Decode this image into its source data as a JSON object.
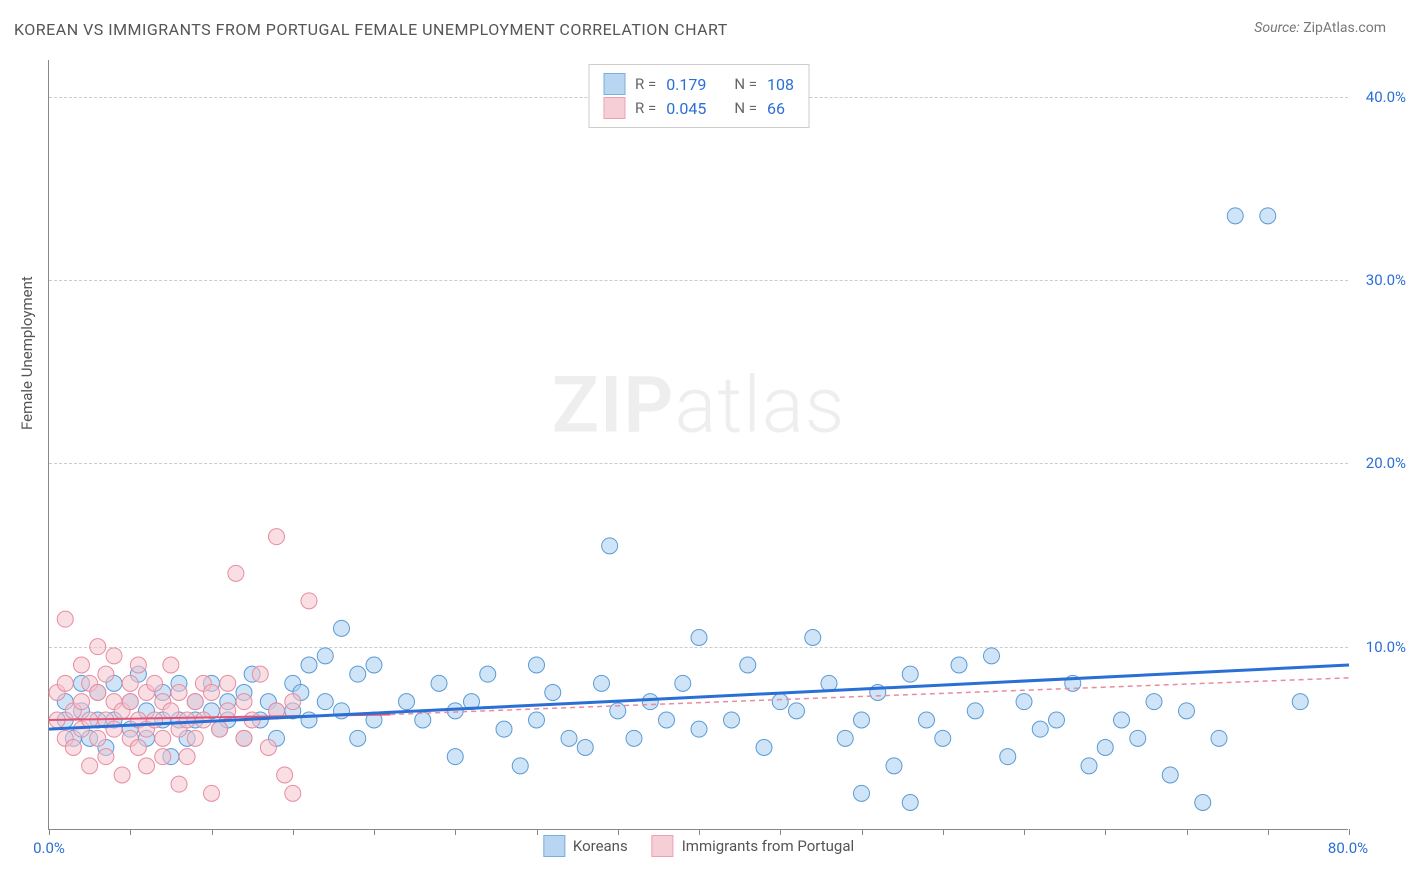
{
  "title": "KOREAN VS IMMIGRANTS FROM PORTUGAL FEMALE UNEMPLOYMENT CORRELATION CHART",
  "source": {
    "label": "Source:",
    "value": "ZipAtlas.com"
  },
  "y_axis_title": "Female Unemployment",
  "watermark": {
    "part1": "ZIP",
    "part2": "atlas"
  },
  "chart": {
    "type": "scatter",
    "background_color": "#ffffff",
    "grid_color": "#cccccc",
    "axis_color": "#888888",
    "tick_label_color": "#2a6fd6",
    "xlim": [
      0,
      80
    ],
    "ylim": [
      0,
      42
    ],
    "x_ticks": [
      0,
      5,
      10,
      15,
      20,
      25,
      30,
      35,
      40,
      45,
      50,
      55,
      60,
      65,
      70,
      75,
      80
    ],
    "x_tick_labels": {
      "0": "0.0%",
      "80": "80.0%"
    },
    "y_ticks": [
      10,
      20,
      30,
      40
    ],
    "y_tick_labels": {
      "10": "10.0%",
      "20": "20.0%",
      "30": "30.0%",
      "40": "40.0%"
    },
    "marker_radius": 8,
    "marker_stroke_width": 1,
    "trend_line_width_blue": 3,
    "trend_line_width_pink_solid": 2,
    "series": [
      {
        "name": "Koreans",
        "fill": "#a7cdf0",
        "fill_opacity": 0.55,
        "stroke": "#5a9bd5",
        "R": "0.179",
        "N": "108",
        "trend": {
          "x1": 0,
          "y1": 5.5,
          "x2": 80,
          "y2": 9.0,
          "color": "#2a6fd6",
          "dash": ""
        },
        "points": [
          [
            1,
            6
          ],
          [
            1,
            7
          ],
          [
            1.5,
            5
          ],
          [
            2,
            6.5
          ],
          [
            2,
            8
          ],
          [
            2.5,
            5
          ],
          [
            3,
            6
          ],
          [
            3,
            7.5
          ],
          [
            3.5,
            4.5
          ],
          [
            4,
            6
          ],
          [
            4,
            8
          ],
          [
            5,
            5.5
          ],
          [
            5,
            7
          ],
          [
            5.5,
            8.5
          ],
          [
            6,
            5
          ],
          [
            6,
            6.5
          ],
          [
            7,
            6
          ],
          [
            7,
            7.5
          ],
          [
            7.5,
            4
          ],
          [
            8,
            6
          ],
          [
            8,
            8
          ],
          [
            8.5,
            5
          ],
          [
            9,
            7
          ],
          [
            9,
            6
          ],
          [
            10,
            6.5
          ],
          [
            10,
            8
          ],
          [
            10.5,
            5.5
          ],
          [
            11,
            7
          ],
          [
            11,
            6
          ],
          [
            12,
            7.5
          ],
          [
            12,
            5
          ],
          [
            12.5,
            8.5
          ],
          [
            13,
            6
          ],
          [
            13.5,
            7
          ],
          [
            14,
            6.5
          ],
          [
            14,
            5
          ],
          [
            15,
            8
          ],
          [
            15,
            6.5
          ],
          [
            15.5,
            7.5
          ],
          [
            16,
            9
          ],
          [
            16,
            6
          ],
          [
            17,
            9.5
          ],
          [
            17,
            7
          ],
          [
            18,
            11
          ],
          [
            18,
            6.5
          ],
          [
            19,
            8.5
          ],
          [
            19,
            5
          ],
          [
            20,
            9
          ],
          [
            20,
            6
          ],
          [
            22,
            7
          ],
          [
            23,
            6
          ],
          [
            24,
            8
          ],
          [
            25,
            6.5
          ],
          [
            25,
            4
          ],
          [
            26,
            7
          ],
          [
            27,
            8.5
          ],
          [
            28,
            5.5
          ],
          [
            29,
            3.5
          ],
          [
            30,
            9
          ],
          [
            30,
            6
          ],
          [
            31,
            7.5
          ],
          [
            32,
            5
          ],
          [
            33,
            4.5
          ],
          [
            34,
            8
          ],
          [
            34.5,
            15.5
          ],
          [
            35,
            6.5
          ],
          [
            36,
            5
          ],
          [
            37,
            7
          ],
          [
            38,
            6
          ],
          [
            39,
            8
          ],
          [
            40,
            10.5
          ],
          [
            40,
            5.5
          ],
          [
            42,
            6
          ],
          [
            43,
            9
          ],
          [
            44,
            4.5
          ],
          [
            45,
            7
          ],
          [
            46,
            6.5
          ],
          [
            47,
            10.5
          ],
          [
            48,
            8
          ],
          [
            49,
            5
          ],
          [
            50,
            6
          ],
          [
            50,
            2
          ],
          [
            51,
            7.5
          ],
          [
            52,
            3.5
          ],
          [
            53,
            8.5
          ],
          [
            53,
            1.5
          ],
          [
            54,
            6
          ],
          [
            55,
            5
          ],
          [
            56,
            9
          ],
          [
            57,
            6.5
          ],
          [
            58,
            9.5
          ],
          [
            59,
            4
          ],
          [
            60,
            7
          ],
          [
            61,
            5.5
          ],
          [
            62,
            6
          ],
          [
            63,
            8
          ],
          [
            64,
            3.5
          ],
          [
            65,
            4.5
          ],
          [
            66,
            6
          ],
          [
            67,
            5
          ],
          [
            68,
            7
          ],
          [
            69,
            3
          ],
          [
            70,
            6.5
          ],
          [
            71,
            1.5
          ],
          [
            72,
            5
          ],
          [
            73,
            33.5
          ],
          [
            75,
            33.5
          ],
          [
            77,
            7
          ]
        ]
      },
      {
        "name": "Immigrants from Portugal",
        "fill": "#f4c2cd",
        "fill_opacity": 0.55,
        "stroke": "#e88ca0",
        "R": "0.045",
        "N": "66",
        "trend_solid": {
          "x1": 0,
          "y1": 6.0,
          "x2": 21,
          "y2": 6.3,
          "color": "#e05577",
          "dash": ""
        },
        "trend_dash": {
          "x1": 21,
          "y1": 6.3,
          "x2": 80,
          "y2": 8.3,
          "color": "#e88ca0",
          "dash": "5,4"
        },
        "points": [
          [
            0.5,
            6
          ],
          [
            0.5,
            7.5
          ],
          [
            1,
            5
          ],
          [
            1,
            8
          ],
          [
            1,
            11.5
          ],
          [
            1.5,
            6.5
          ],
          [
            1.5,
            4.5
          ],
          [
            2,
            7
          ],
          [
            2,
            9
          ],
          [
            2,
            5.5
          ],
          [
            2.5,
            6
          ],
          [
            2.5,
            8
          ],
          [
            2.5,
            3.5
          ],
          [
            3,
            7.5
          ],
          [
            3,
            5
          ],
          [
            3,
            10
          ],
          [
            3.5,
            6
          ],
          [
            3.5,
            8.5
          ],
          [
            3.5,
            4
          ],
          [
            4,
            7
          ],
          [
            4,
            5.5
          ],
          [
            4,
            9.5
          ],
          [
            4.5,
            6.5
          ],
          [
            4.5,
            3
          ],
          [
            5,
            8
          ],
          [
            5,
            5
          ],
          [
            5,
            7
          ],
          [
            5.5,
            6
          ],
          [
            5.5,
            4.5
          ],
          [
            5.5,
            9
          ],
          [
            6,
            7.5
          ],
          [
            6,
            5.5
          ],
          [
            6,
            3.5
          ],
          [
            6.5,
            6
          ],
          [
            6.5,
            8
          ],
          [
            7,
            5
          ],
          [
            7,
            7
          ],
          [
            7,
            4
          ],
          [
            7.5,
            6.5
          ],
          [
            7.5,
            9
          ],
          [
            8,
            5.5
          ],
          [
            8,
            7.5
          ],
          [
            8,
            2.5
          ],
          [
            8.5,
            6
          ],
          [
            8.5,
            4
          ],
          [
            9,
            7
          ],
          [
            9,
            5
          ],
          [
            9.5,
            8
          ],
          [
            9.5,
            6
          ],
          [
            10,
            2
          ],
          [
            10,
            7.5
          ],
          [
            10.5,
            5.5
          ],
          [
            11,
            6.5
          ],
          [
            11,
            8
          ],
          [
            11.5,
            14
          ],
          [
            12,
            5
          ],
          [
            12,
            7
          ],
          [
            12.5,
            6
          ],
          [
            13,
            8.5
          ],
          [
            13.5,
            4.5
          ],
          [
            14,
            6.5
          ],
          [
            14,
            16
          ],
          [
            14.5,
            3
          ],
          [
            15,
            7
          ],
          [
            15,
            2
          ],
          [
            16,
            12.5
          ]
        ]
      }
    ]
  },
  "legend_top": {
    "R_label": "R  =",
    "N_label": "N  ="
  },
  "legend_bottom": {
    "label1": "Koreans",
    "label2": "Immigrants from Portugal"
  }
}
